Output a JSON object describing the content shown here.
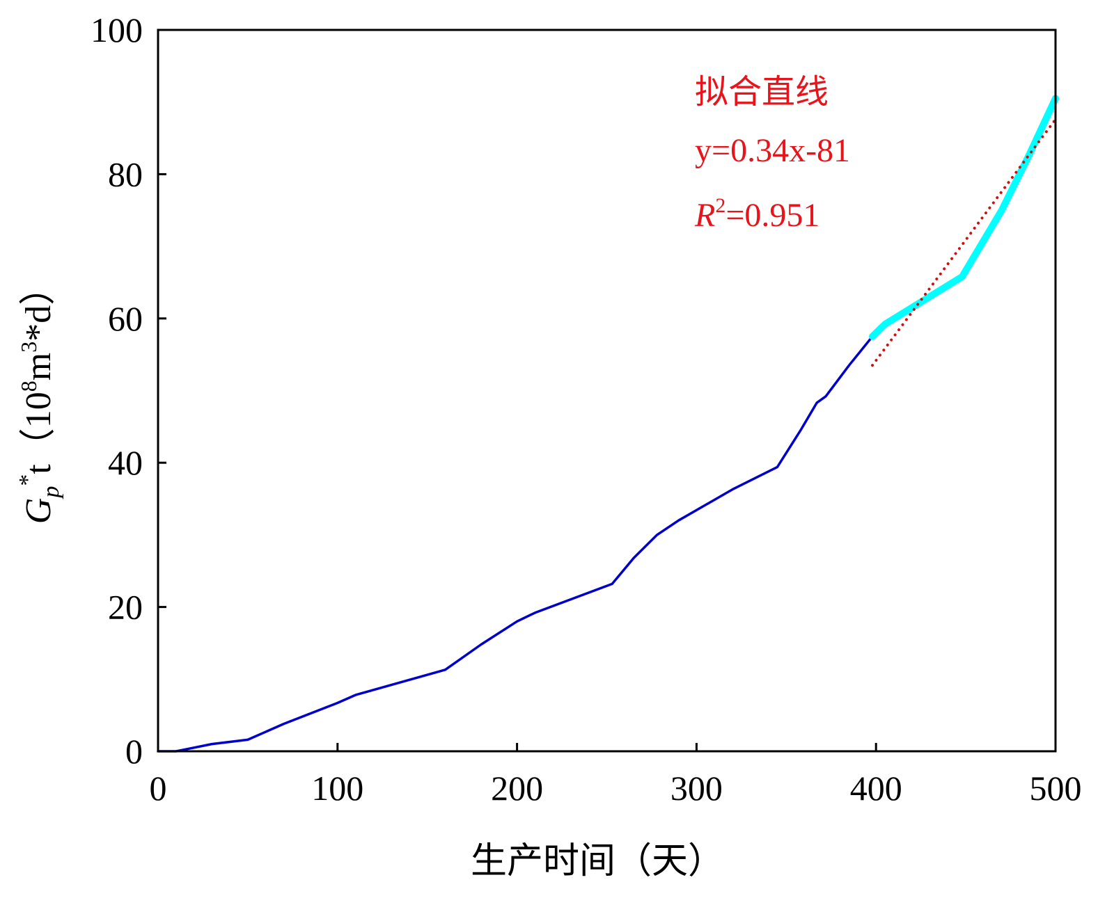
{
  "chart_data": {
    "type": "line",
    "title": "",
    "xlabel": "生产时间（天）",
    "ylabel": {
      "G": "G",
      "sub": "p",
      "star": "*",
      "t": "t（10",
      "sup8": "8",
      "m": "m",
      "sup3": "3",
      "rest": "*d）"
    },
    "xlim": [
      0,
      500
    ],
    "ylim": [
      0,
      100
    ],
    "xticks": [
      "0",
      "100",
      "200",
      "300",
      "400",
      "500"
    ],
    "yticks": [
      "0",
      "20",
      "40",
      "60",
      "80",
      "100"
    ],
    "grid": false,
    "series": [
      {
        "name": "production-data",
        "color": "#0000cc",
        "x": [
          0,
          10,
          20,
          30,
          50,
          70,
          100,
          110,
          160,
          180,
          200,
          210,
          253,
          265,
          278,
          290,
          320,
          345,
          358,
          367,
          372,
          385,
          398
        ],
        "y": [
          0,
          0,
          0.5,
          1.0,
          1.6,
          3.8,
          6.7,
          7.8,
          11.3,
          14.8,
          18.0,
          19.2,
          23.2,
          26.8,
          30.0,
          32.0,
          36.3,
          39.4,
          44.5,
          48.3,
          49.2,
          53.5,
          57.5
        ]
      },
      {
        "name": "fit-segment",
        "color": "#00ffff",
        "x": [
          398,
          405,
          448,
          470,
          485,
          500
        ],
        "y": [
          57.5,
          59.2,
          65.8,
          75.0,
          82.5,
          90.5
        ]
      },
      {
        "name": "fitted-line",
        "color": "#cc1111",
        "style": "dotted",
        "x": [
          398,
          500
        ],
        "y": [
          53.5,
          87.6
        ]
      }
    ],
    "annotation": {
      "title": "拟合直线",
      "equation": "y=0.34x-81",
      "r2_label": "R",
      "r2_sup": "2",
      "r2_value": "=0.951"
    }
  }
}
